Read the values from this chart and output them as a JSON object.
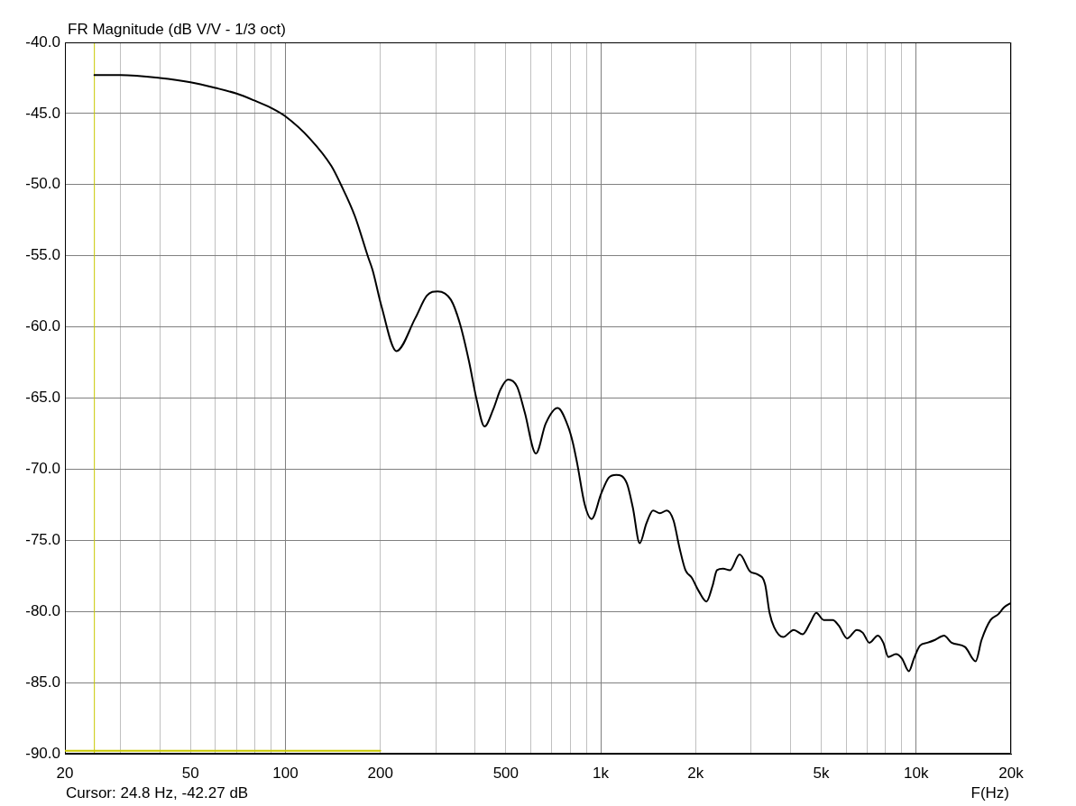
{
  "chart_data": {
    "type": "line",
    "title": "FR Magnitude (dB V/V - 1/3 oct)",
    "xlabel": "F(Hz)",
    "annotations": [
      "Cursor: 24.8 Hz, -42.27 dB"
    ],
    "log": "x",
    "grid": true,
    "marker": "none",
    "xlim": [
      20,
      20000
    ],
    "xticks": [
      20,
      {
        "value": 30,
        "label": null
      },
      {
        "value": 40,
        "label": null
      },
      50,
      {
        "value": 60,
        "label": null
      },
      {
        "value": 70,
        "label": null
      },
      {
        "value": 80,
        "label": null
      },
      {
        "value": 90,
        "label": null
      },
      100,
      200,
      {
        "value": 300,
        "label": null
      },
      {
        "value": 400,
        "label": null
      },
      500,
      {
        "value": 600,
        "label": null
      },
      {
        "value": 700,
        "label": null
      },
      {
        "value": 800,
        "label": null
      },
      {
        "value": 900,
        "label": null
      },
      {
        "value": 1000,
        "label": "1k"
      },
      {
        "value": 2000,
        "label": "2k"
      },
      {
        "value": 3000,
        "label": null
      },
      {
        "value": 4000,
        "label": null
      },
      {
        "value": 5000,
        "label": "5k"
      },
      {
        "value": 6000,
        "label": null
      },
      {
        "value": 7000,
        "label": null
      },
      {
        "value": 8000,
        "label": null
      },
      {
        "value": 9000,
        "label": null
      },
      {
        "value": 10000,
        "label": "10k"
      },
      {
        "value": 20000,
        "label": "20k"
      }
    ],
    "ylim": [
      -90,
      -40
    ],
    "yticks": [
      {
        "value": -90,
        "label": "-90.0"
      },
      {
        "value": -85,
        "label": "-85.0"
      },
      {
        "value": -80,
        "label": "-80.0"
      },
      {
        "value": -75,
        "label": "-75.0"
      },
      {
        "value": -70,
        "label": "-70.0"
      },
      {
        "value": -65,
        "label": "-65.0"
      },
      {
        "value": -60,
        "label": "-60.0"
      },
      {
        "value": -55,
        "label": "-55.0"
      },
      {
        "value": -50,
        "label": "-50.0"
      },
      {
        "value": -45,
        "label": "-45.0"
      },
      {
        "value": -40,
        "label": "-40.0"
      }
    ],
    "ref_lines": [
      {
        "axis": "x",
        "value": 24.8,
        "color": "#c8c800"
      }
    ],
    "series": [
      {
        "color": "#000000",
        "x": [
          24.8,
          30,
          40,
          50,
          60,
          70,
          80,
          90,
          100,
          120,
          140,
          150,
          166,
          183,
          189,
          202,
          225,
          258,
          281,
          304,
          335,
          358,
          382,
          404,
          428,
          456,
          481,
          508,
          543,
          574,
          623,
          669,
          730,
          788,
          815,
          842,
          890,
          935,
          1004,
          1060,
          1120,
          1210,
          1264,
          1329,
          1396,
          1465,
          1540,
          1620,
          1701,
          1776,
          1856,
          1939,
          2049,
          2164,
          2262,
          2337,
          2443,
          2568,
          2757,
          2977,
          3143,
          3320,
          3430,
          3545,
          3787,
          4092,
          4369,
          4615,
          4823,
          5094,
          5441,
          5685,
          6045,
          6487,
          6777,
          7112,
          7562,
          7869,
          8166,
          8627,
          9016,
          9485,
          9844,
          10286,
          10862,
          11482,
          12262,
          12951,
          14295,
          15441,
          16127,
          17223,
          18207,
          19025,
          20000
        ],
        "values": [
          -42.3,
          -42.3,
          -42.5,
          -42.8,
          -43.2,
          -43.6,
          -44.1,
          -44.6,
          -45.2,
          -46.8,
          -48.7,
          -50.0,
          -52.2,
          -55.1,
          -56.0,
          -58.6,
          -61.7,
          -59.4,
          -57.8,
          -57.5,
          -58.1,
          -59.8,
          -62.4,
          -65.1,
          -67.0,
          -65.8,
          -64.4,
          -63.7,
          -64.2,
          -66.0,
          -68.9,
          -66.8,
          -65.7,
          -67.0,
          -68.1,
          -69.6,
          -72.5,
          -73.5,
          -71.7,
          -70.6,
          -70.4,
          -71.0,
          -72.7,
          -75.2,
          -73.8,
          -72.9,
          -73.1,
          -72.9,
          -73.6,
          -75.5,
          -77.1,
          -77.6,
          -78.6,
          -79.3,
          -78.2,
          -77.1,
          -77.0,
          -77.1,
          -76.0,
          -77.2,
          -77.4,
          -78.1,
          -80.1,
          -81.1,
          -81.8,
          -81.3,
          -81.6,
          -80.8,
          -80.1,
          -80.6,
          -80.6,
          -81.0,
          -81.9,
          -81.3,
          -81.5,
          -82.2,
          -81.7,
          -82.2,
          -83.2,
          -83.0,
          -83.3,
          -84.2,
          -83.3,
          -82.4,
          -82.2,
          -82.0,
          -81.7,
          -82.2,
          -82.5,
          -83.5,
          -82.0,
          -80.6,
          -80.2,
          -79.7,
          -79.4
        ]
      },
      {
        "color": "#c8c800",
        "x": [
          20,
          200
        ],
        "values": [
          -89.8,
          -89.8
        ]
      }
    ]
  }
}
